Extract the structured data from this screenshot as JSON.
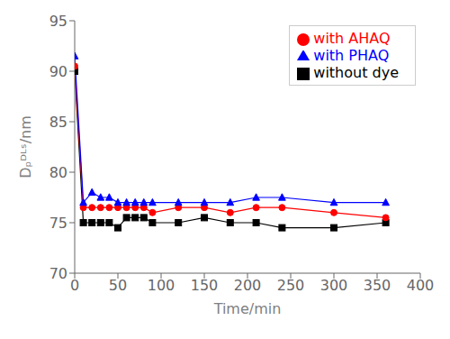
{
  "chart_data": {
    "type": "line",
    "xlabel": "Time/min",
    "ylabel": "Dₚᴰᴸˢ/nm",
    "x": [
      0,
      10,
      20,
      30,
      40,
      50,
      60,
      70,
      80,
      90,
      120,
      150,
      180,
      210,
      240,
      300,
      360
    ],
    "series": [
      {
        "name": "without dye",
        "color": "black",
        "marker": "square",
        "values": [
          90,
          75,
          75,
          75,
          75,
          74.5,
          75.5,
          75.5,
          75.5,
          75,
          75,
          75.5,
          75,
          75,
          74.5,
          74.5,
          75
        ]
      },
      {
        "name": "with AHAQ",
        "color": "red",
        "marker": "circle",
        "values": [
          90.5,
          76.5,
          76.5,
          76.5,
          76.5,
          76.5,
          76.5,
          76.5,
          76.5,
          76,
          76.5,
          76.5,
          76,
          76.5,
          76.5,
          76,
          75.5
        ]
      },
      {
        "name": "with PHAQ",
        "color": "blue",
        "marker": "triangle",
        "values": [
          91.5,
          77,
          78,
          77.5,
          77.5,
          77,
          77,
          77,
          77,
          77,
          77,
          77,
          77,
          77.5,
          77.5,
          77,
          77
        ]
      }
    ],
    "xlim": [
      0,
      400
    ],
    "ylim": [
      70,
      95
    ],
    "xticks": [
      0,
      50,
      100,
      150,
      200,
      250,
      300,
      350,
      400
    ],
    "yticks": [
      70,
      75,
      80,
      85,
      90,
      95
    ],
    "grid": false,
    "legend": "upper right"
  }
}
